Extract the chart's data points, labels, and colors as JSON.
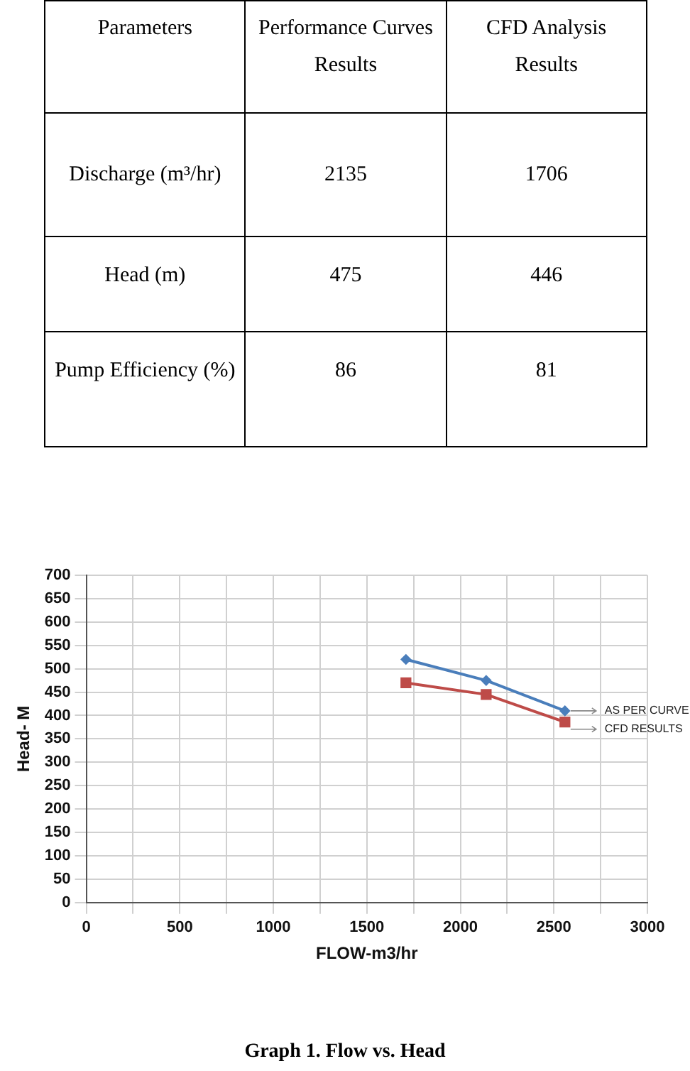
{
  "chart_data": [
    {
      "type": "other",
      "annotations": [
        "Parameters",
        "Performance Curves Results",
        "CFD Analysis Results",
        "Discharge (m³/hr)",
        "2135",
        "1706",
        "Head (m)",
        "475",
        "446",
        "Pump Efficiency (%)",
        "86",
        "81"
      ]
    },
    {
      "type": "line",
      "xlabel": "FLOW-m3/hr",
      "ylabel": "Head- M",
      "annotations": [
        "Graph 1. Flow vs. Head"
      ],
      "series": [
        {
          "name": "AS PER CURVE",
          "color": "#4a7ebb",
          "marker": "diamond",
          "x": [
            1709,
            2138,
            2559
          ],
          "values": [
            520,
            475,
            410
          ]
        },
        {
          "name": "CFD RESULTS",
          "color": "#be4b48",
          "marker": "square",
          "x": [
            1709,
            2138,
            2559
          ],
          "values": [
            470,
            445,
            386
          ]
        }
      ],
      "xlim": [
        0,
        3000
      ],
      "xticks": [
        0,
        {
          "value": 250,
          "label": null
        },
        500,
        {
          "value": 750,
          "label": null
        },
        1000,
        {
          "value": 1250,
          "label": null
        },
        1500,
        {
          "value": 1750,
          "label": null
        },
        2000,
        {
          "value": 2250,
          "label": null
        },
        2500,
        {
          "value": 2750,
          "label": null
        },
        3000
      ],
      "ylim": [
        0,
        700
      ],
      "yticks": [
        0,
        50,
        100,
        150,
        200,
        250,
        300,
        350,
        400,
        450,
        500,
        550,
        600,
        650,
        700
      ],
      "grid": true,
      "line_style": "solid"
    }
  ]
}
